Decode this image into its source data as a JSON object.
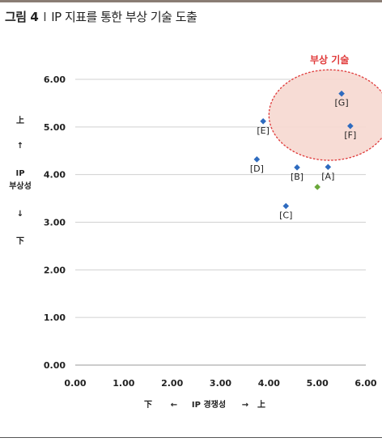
{
  "figure": {
    "label": "그림 4",
    "separator": "I",
    "caption": "IP 지표를 통한 부상 기술 도출"
  },
  "colors": {
    "point": "#2e6bbf",
    "highlight": "#6aa83a",
    "ellipse_fill": "#f6d8d0",
    "ellipse_stroke": "#e04040",
    "annotation": "#e03a3a",
    "grid": "#d0d0d0"
  },
  "chart_data": {
    "type": "scatter",
    "title": "",
    "xlim": [
      0,
      6
    ],
    "ylim": [
      0,
      6
    ],
    "x_ticks": [
      "0.00",
      "1.00",
      "2.00",
      "3.00",
      "4.00",
      "5.00",
      "6.00"
    ],
    "y_ticks": [
      "0.00",
      "1.00",
      "2.00",
      "3.00",
      "4.00",
      "5.00",
      "6.00"
    ],
    "grid": "horizontal",
    "xlabel": {
      "low": "下",
      "arrow_left": "←",
      "text": "IP 경쟁성",
      "arrow_right": "→",
      "high": "上"
    },
    "ylabel": {
      "high": "上",
      "arrow_up": "↑",
      "line1": "IP",
      "line2": "부상성",
      "arrow_down": "↓",
      "low": "下"
    },
    "points": [
      {
        "label": "[G]",
        "x": 5.5,
        "y": 5.7
      },
      {
        "label": "[E]",
        "x": 3.88,
        "y": 5.12
      },
      {
        "label": "[F]",
        "x": 5.68,
        "y": 5.02
      },
      {
        "label": "[D]",
        "x": 3.75,
        "y": 4.32
      },
      {
        "label": "[B]",
        "x": 4.58,
        "y": 4.15
      },
      {
        "label": "[A]",
        "x": 5.22,
        "y": 4.16
      },
      {
        "label": "[C]",
        "x": 4.35,
        "y": 3.34
      },
      {
        "label": "",
        "x": 5.0,
        "y": 3.74,
        "highlight": true
      }
    ],
    "annotation": {
      "text": "부상 기술",
      "center": [
        5.25,
        5.25
      ],
      "radius": [
        1.25,
        0.95
      ]
    }
  }
}
